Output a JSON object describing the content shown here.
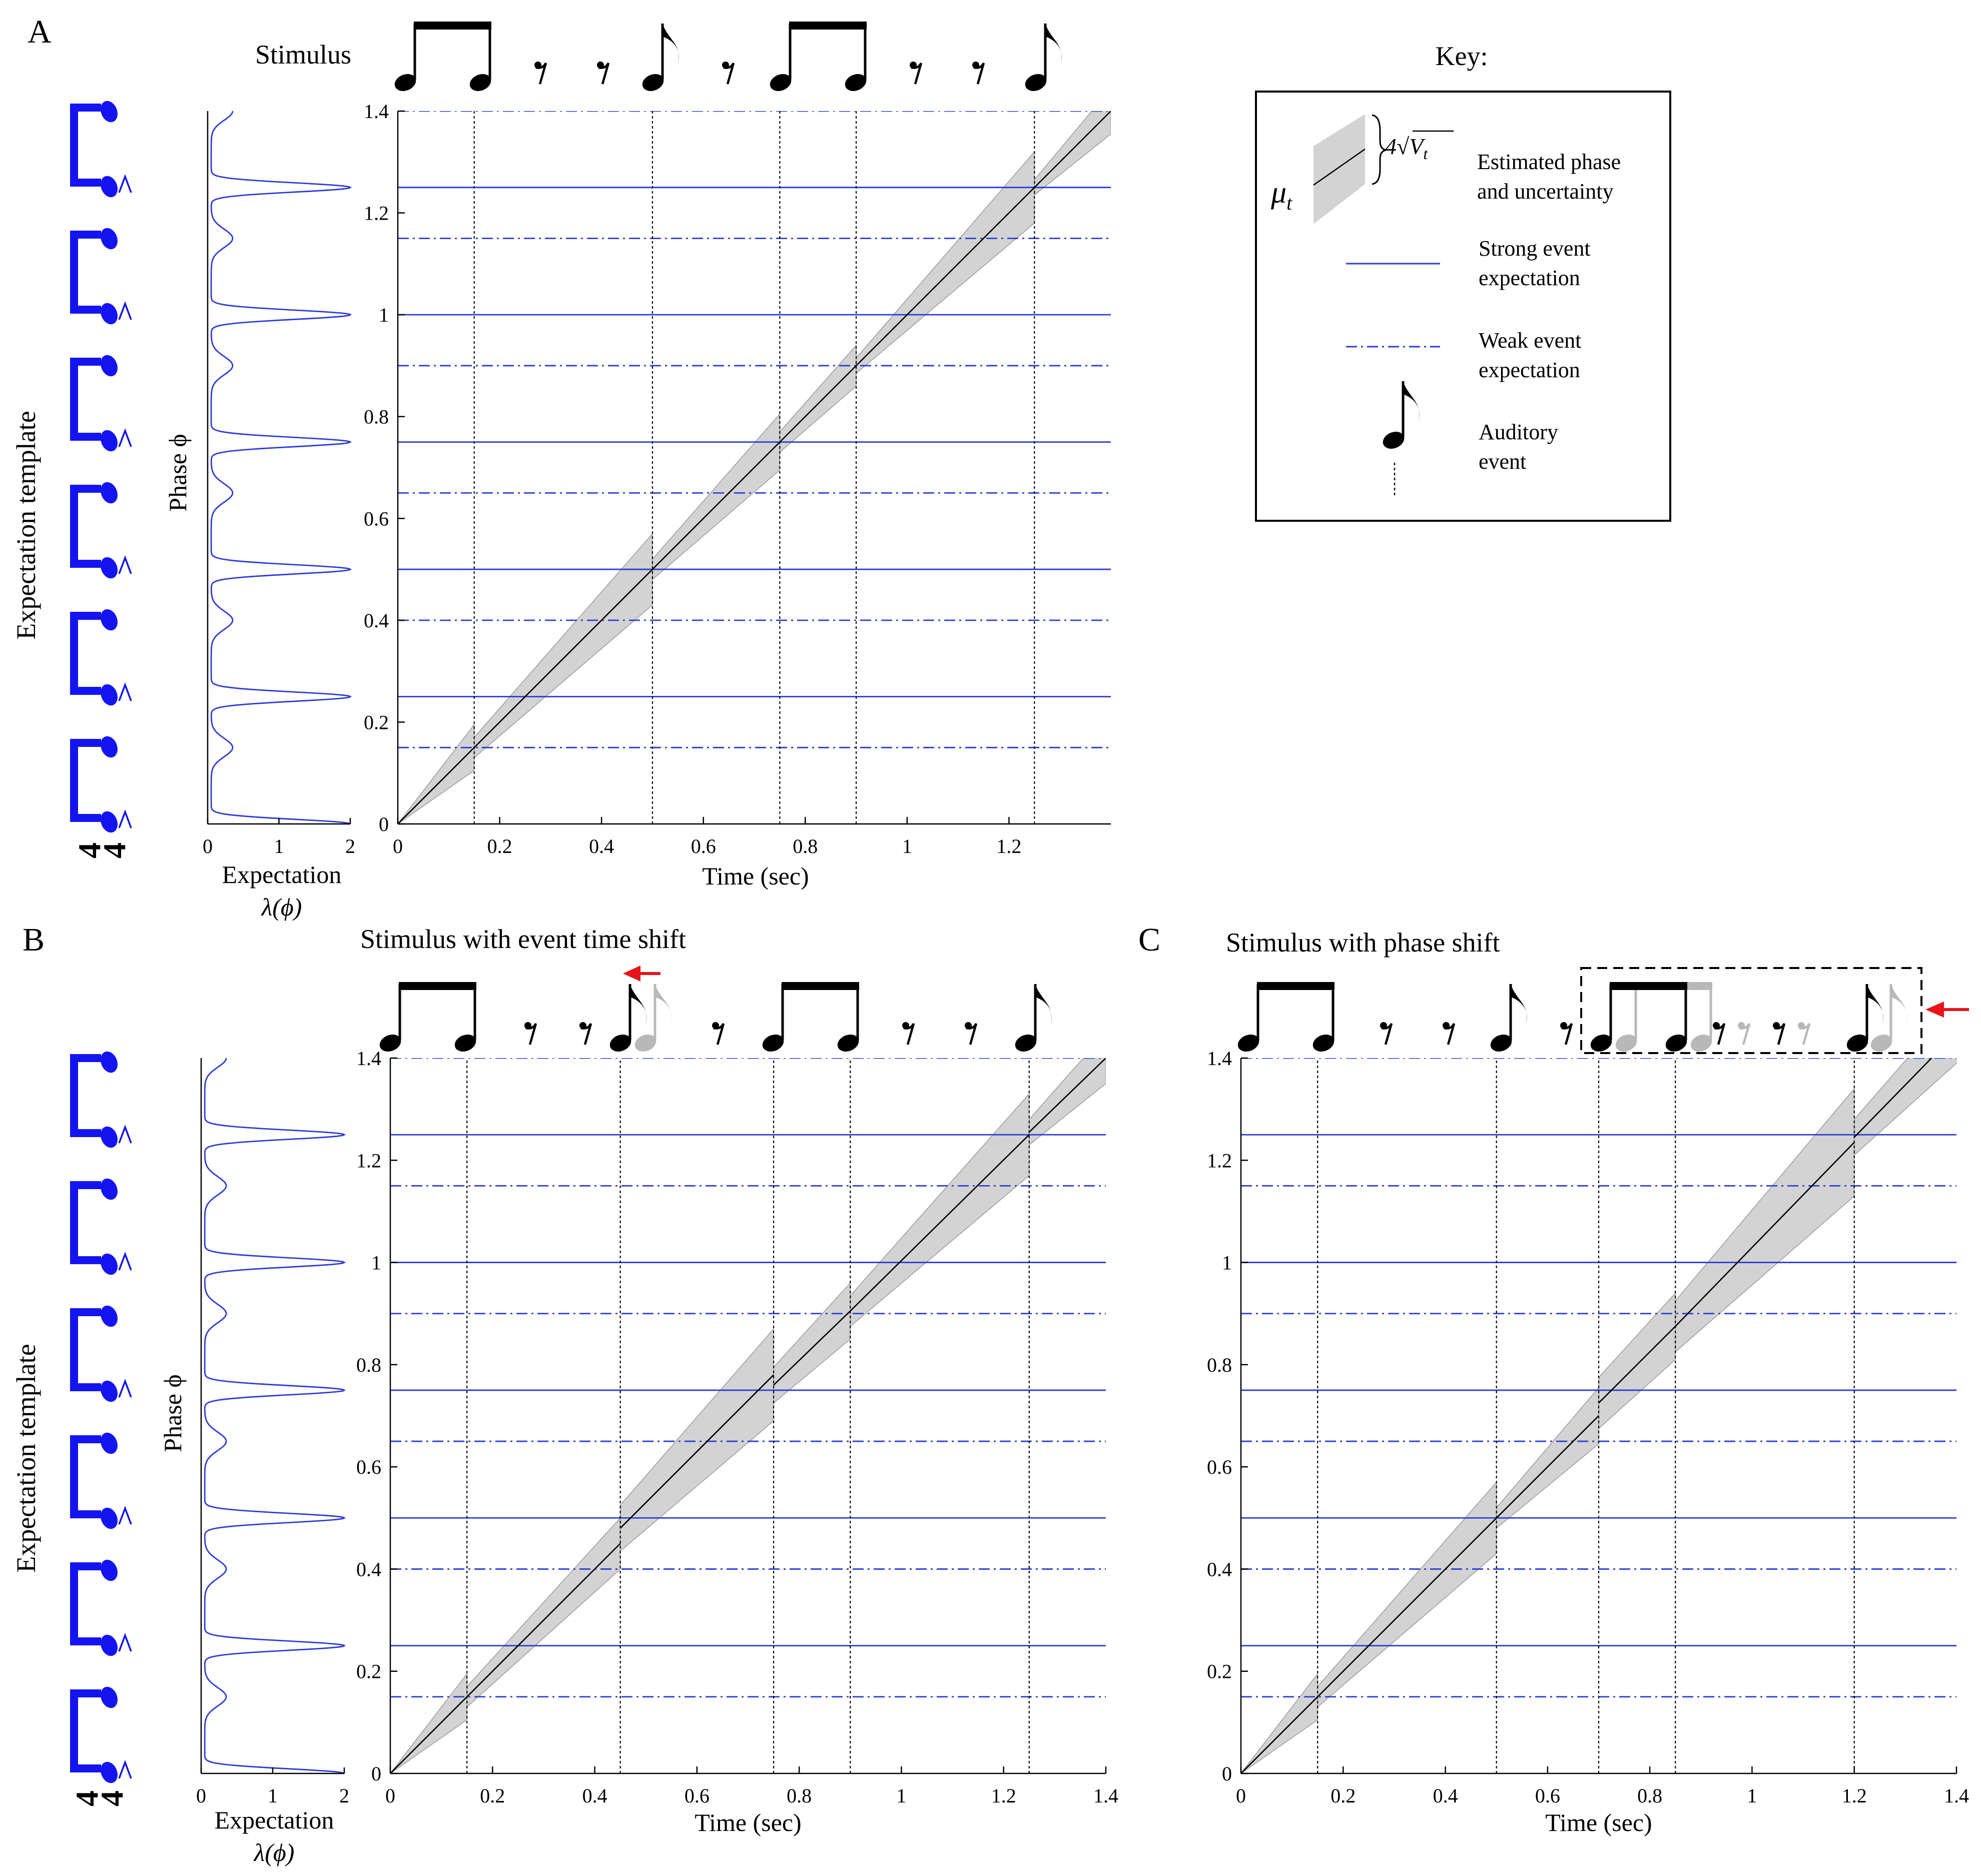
{
  "panel_labels": [
    "A",
    "B",
    "C"
  ],
  "panel_titles": {
    "A": "Stimulus",
    "B": "Stimulus with event time shift",
    "C": "Stimulus with phase shift"
  },
  "template_label": "Expectation template",
  "time_signature": [
    "4",
    "4"
  ],
  "key": {
    "title": "Key:",
    "mu_label": "μ",
    "mu_sub": "t",
    "width_label": "4√V",
    "width_sub": "t",
    "phase_line1": "Estimated phase",
    "phase_line2": "and uncertainty",
    "strong_line1": "Strong event",
    "strong_line2": "expectation",
    "weak_line1": "Weak event",
    "weak_line2": "expectation",
    "aud_line1": "Auditory",
    "aud_line2": "event"
  },
  "colors": {
    "expectation_line": "#2b3cd6",
    "template_blue": "#1414f0",
    "uncertainty_band": "#d3d3d3",
    "shift_arrow": "#e8141b",
    "ghost_note": "#b8b8b8"
  },
  "chart_data": [
    {
      "panel": "A",
      "type": "line",
      "title": "",
      "xlabel": "Time (sec)",
      "ylabel": "Phase ϕ",
      "xlim": [
        0,
        1.4
      ],
      "ylim": [
        0,
        1.4
      ],
      "xticks": [
        0,
        0.2,
        0.4,
        0.6,
        0.8,
        1,
        1.2
      ],
      "yticks": [
        0,
        0.2,
        0.4,
        0.6,
        0.8,
        1,
        1.2,
        1.4
      ],
      "strong_expectations": [
        0.25,
        0.5,
        0.75,
        1.0,
        1.25
      ],
      "weak_expectations": [
        0.15,
        0.4,
        0.65,
        0.9,
        1.15,
        1.4
      ],
      "event_times": [
        0.15,
        0.5,
        0.75,
        0.9,
        1.25
      ],
      "estimate_segments": [
        {
          "t0": 0,
          "t1": 0.15,
          "mu0": 0,
          "mu1": 0.15,
          "w0": 0,
          "w1": 0.045
        },
        {
          "t0": 0.15,
          "t1": 0.5,
          "mu0": 0.15,
          "mu1": 0.5,
          "w0": 0.02,
          "w1": 0.07
        },
        {
          "t0": 0.5,
          "t1": 0.75,
          "mu0": 0.5,
          "mu1": 0.75,
          "w0": 0.02,
          "w1": 0.055
        },
        {
          "t0": 0.75,
          "t1": 0.9,
          "mu0": 0.75,
          "mu1": 0.9,
          "w0": 0.02,
          "w1": 0.04
        },
        {
          "t0": 0.9,
          "t1": 1.25,
          "mu0": 0.9,
          "mu1": 1.25,
          "w0": 0.015,
          "w1": 0.07
        },
        {
          "t0": 1.25,
          "t1": 1.4,
          "mu0": 1.25,
          "mu1": 1.4,
          "w0": 0.015,
          "w1": 0.045
        }
      ]
    },
    {
      "panel": "B",
      "type": "line",
      "title": "",
      "xlabel": "Time (sec)",
      "ylabel": "Phase ϕ",
      "xlim": [
        0,
        1.4
      ],
      "ylim": [
        0,
        1.4
      ],
      "xticks": [
        0,
        0.2,
        0.4,
        0.6,
        0.8,
        1,
        1.2,
        1.4
      ],
      "yticks": [
        0,
        0.2,
        0.4,
        0.6,
        0.8,
        1,
        1.2,
        1.4
      ],
      "strong_expectations": [
        0.25,
        0.5,
        0.75,
        1.0,
        1.25
      ],
      "weak_expectations": [
        0.15,
        0.4,
        0.65,
        0.9,
        1.15,
        1.4
      ],
      "event_times": [
        0.15,
        0.45,
        0.75,
        0.9,
        1.25
      ],
      "estimate_segments": [
        {
          "t0": 0,
          "t1": 0.15,
          "mu0": 0,
          "mu1": 0.15,
          "w0": 0,
          "w1": 0.045
        },
        {
          "t0": 0.15,
          "t1": 0.45,
          "mu0": 0.15,
          "mu1": 0.45,
          "w0": 0.02,
          "w1": 0.05
        },
        {
          "t0": 0.45,
          "t1": 0.75,
          "mu0": 0.48,
          "mu1": 0.78,
          "w0": 0.045,
          "w1": 0.09
        },
        {
          "t0": 0.75,
          "t1": 0.9,
          "mu0": 0.76,
          "mu1": 0.905,
          "w0": 0.035,
          "w1": 0.055
        },
        {
          "t0": 0.9,
          "t1": 1.25,
          "mu0": 0.905,
          "mu1": 1.25,
          "w0": 0.03,
          "w1": 0.08
        },
        {
          "t0": 1.25,
          "t1": 1.4,
          "mu0": 1.255,
          "mu1": 1.4,
          "w0": 0.025,
          "w1": 0.05
        }
      ]
    },
    {
      "panel": "C",
      "type": "line",
      "title": "",
      "xlabel": "Time (sec)",
      "ylabel": "",
      "xlim": [
        0,
        1.4
      ],
      "ylim": [
        0,
        1.4
      ],
      "xticks": [
        0,
        0.2,
        0.4,
        0.6,
        0.8,
        1,
        1.2,
        1.4
      ],
      "yticks": [
        0,
        0.2,
        0.4,
        0.6,
        0.8,
        1,
        1.2,
        1.4
      ],
      "strong_expectations": [
        0.25,
        0.5,
        0.75,
        1.0,
        1.25
      ],
      "weak_expectations": [
        0.15,
        0.4,
        0.65,
        0.9,
        1.15,
        1.4
      ],
      "event_times": [
        0.15,
        0.5,
        0.7,
        0.85,
        1.2
      ],
      "estimate_segments": [
        {
          "t0": 0,
          "t1": 0.15,
          "mu0": 0,
          "mu1": 0.15,
          "w0": 0,
          "w1": 0.045
        },
        {
          "t0": 0.15,
          "t1": 0.5,
          "mu0": 0.15,
          "mu1": 0.5,
          "w0": 0.02,
          "w1": 0.07
        },
        {
          "t0": 0.5,
          "t1": 0.7,
          "mu0": 0.5,
          "mu1": 0.7,
          "w0": 0.02,
          "w1": 0.055
        },
        {
          "t0": 0.7,
          "t1": 0.85,
          "mu0": 0.725,
          "mu1": 0.875,
          "w0": 0.05,
          "w1": 0.065
        },
        {
          "t0": 0.85,
          "t1": 1.2,
          "mu0": 0.875,
          "mu1": 1.235,
          "w0": 0.05,
          "w1": 0.105
        },
        {
          "t0": 1.2,
          "t1": 1.4,
          "mu0": 1.245,
          "mu1": 1.45,
          "w0": 0.035,
          "w1": 0.06
        }
      ]
    },
    {
      "panel": "A-expectation",
      "type": "line",
      "xlabel": "Expectation",
      "xlabel2": "λ(ϕ)",
      "ylabel": "",
      "xlim": [
        0,
        2
      ],
      "ylim": [
        0,
        1.4
      ],
      "xticks": [
        0,
        1,
        2
      ],
      "strong_peaks": [
        0,
        0.25,
        0.5,
        0.75,
        1.0,
        1.25
      ],
      "strong_peak_height": 2.0,
      "weak_peaks": [
        0.15,
        0.4,
        0.65,
        0.9,
        1.15,
        1.4
      ],
      "weak_peak_height": 0.3,
      "baseline": 0.05
    },
    {
      "panel": "B-expectation",
      "type": "line",
      "xlabel": "Expectation",
      "xlabel2": "λ(ϕ)",
      "ylabel": "",
      "xlim": [
        0,
        2
      ],
      "ylim": [
        0,
        1.4
      ],
      "xticks": [
        0,
        1,
        2
      ],
      "strong_peaks": [
        0,
        0.25,
        0.5,
        0.75,
        1.0,
        1.25
      ],
      "strong_peak_height": 2.0,
      "weak_peaks": [
        0.15,
        0.4,
        0.65,
        0.9,
        1.15,
        1.4
      ],
      "weak_peak_height": 0.3,
      "baseline": 0.05
    }
  ]
}
